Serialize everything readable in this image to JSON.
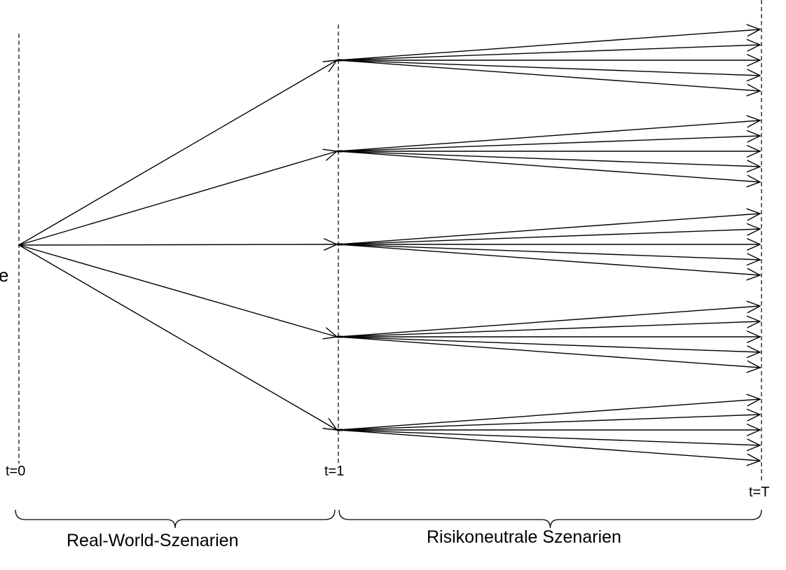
{
  "diagram": {
    "time_labels": {
      "t0": "t=0",
      "t1": "t=1",
      "tT": "t=T"
    },
    "brace_labels": {
      "left": "Real-World-Szenarien",
      "right": "Risikoneutrale Szenarien"
    },
    "clipped_left_text": "e",
    "real_world_branch_count": 5,
    "risk_neutral_branches_per_node": 5,
    "line_color": "#000000"
  }
}
